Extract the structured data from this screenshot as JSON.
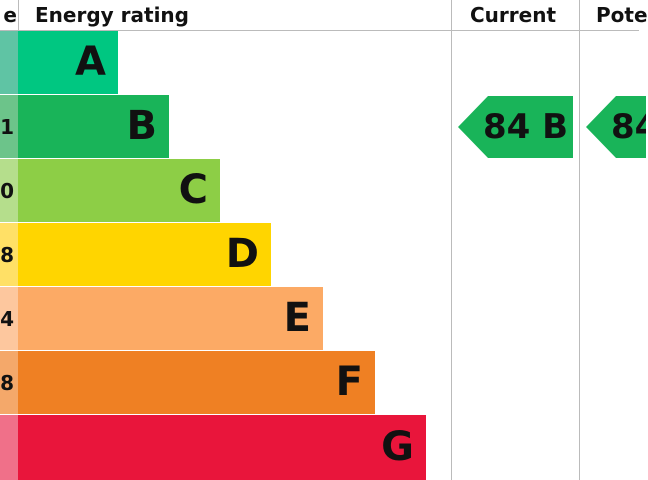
{
  "headers": {
    "score": "e",
    "rating": "Energy rating",
    "current": "Current",
    "potential": "Pote"
  },
  "chart_data": {
    "type": "bar",
    "categories": [
      "A",
      "B",
      "C",
      "D",
      "E",
      "F",
      "G"
    ],
    "score_fragments": [
      "",
      "1",
      "0",
      "8",
      "4",
      "8",
      ""
    ],
    "colors": [
      "#00c781",
      "#19b459",
      "#8dce46",
      "#ffd500",
      "#fcaa65",
      "#ef8023",
      "#e9153b"
    ],
    "score_colors": [
      "#5fc4a4",
      "#6cc48a",
      "#b5de8c",
      "#ffe066",
      "#fdc79e",
      "#f4a86a",
      "#f07089"
    ],
    "current": {
      "label": "84 B",
      "value": 84,
      "band": "B",
      "color": "#19b459"
    },
    "potential": {
      "label": "84",
      "value": 84,
      "color": "#19b459"
    }
  }
}
